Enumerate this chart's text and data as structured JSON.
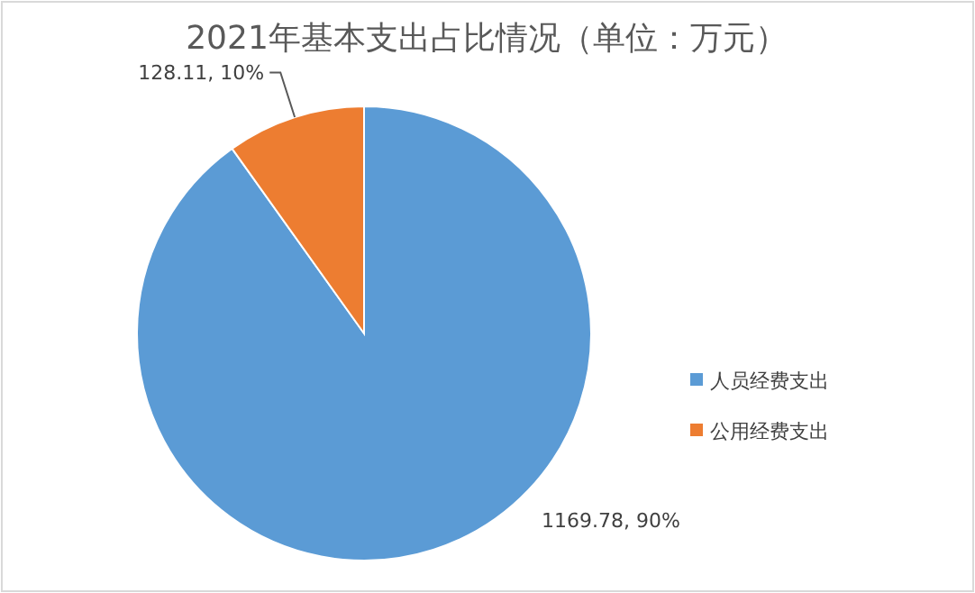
{
  "chart_data": {
    "type": "pie",
    "title": "2021年基本支出占比情况（单位：万元）",
    "categories": [
      "人员经费支出",
      "公用经费支出"
    ],
    "values": [
      1169.78,
      128.11
    ],
    "colors": [
      "#5b9bd5",
      "#ed7d31"
    ],
    "value_labels": [
      "1169.78, 90%",
      "128.11, 10%"
    ],
    "legend": "right"
  }
}
